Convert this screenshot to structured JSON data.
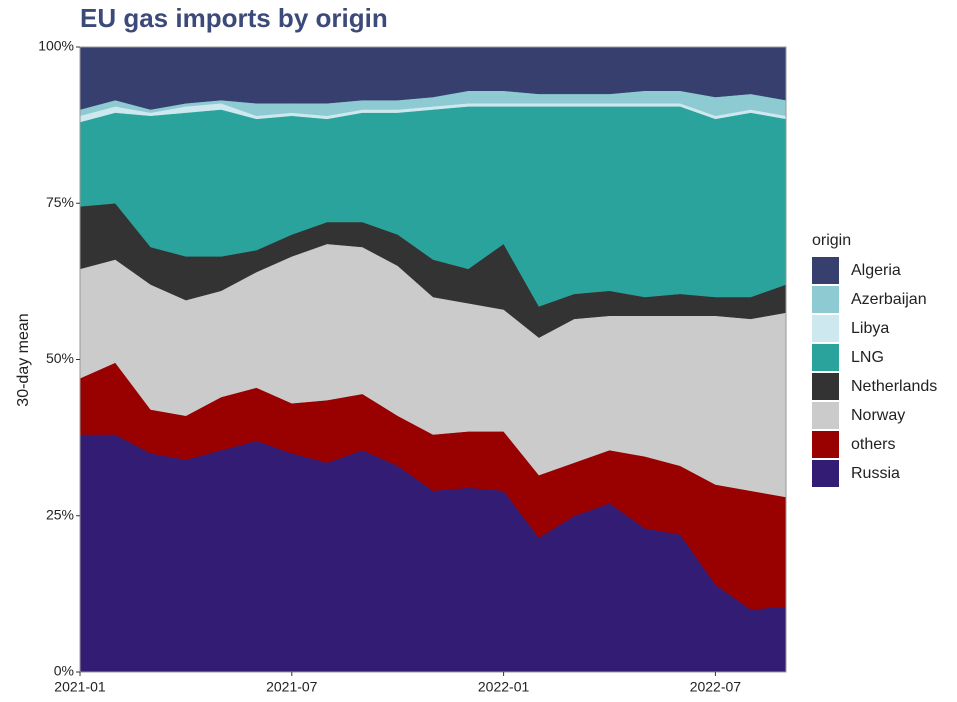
{
  "chart_data": {
    "type": "stacked_area",
    "title": "EU gas imports by origin",
    "y_label": "30-day mean",
    "legend_title": "origin",
    "legend": "right",
    "x": [
      "2021-01",
      "2021-02",
      "2021-03",
      "2021-04",
      "2021-05",
      "2021-06",
      "2021-07",
      "2021-08",
      "2021-09",
      "2021-10",
      "2021-11",
      "2021-12",
      "2022-01",
      "2022-02",
      "2022-03",
      "2022-04",
      "2022-05",
      "2022-06",
      "2022-07",
      "2022-08",
      "2022-09"
    ],
    "xlim": [
      "2021-01",
      "2022-09"
    ],
    "xticks": [
      "2021-01",
      "2021-07",
      "2022-01",
      "2022-07"
    ],
    "ylim": [
      0,
      100
    ],
    "yticks": [
      {
        "value": 0,
        "label": "0%"
      },
      {
        "value": 25,
        "label": "25%"
      },
      {
        "value": 50,
        "label": "50%"
      },
      {
        "value": 75,
        "label": "75%"
      },
      {
        "value": 100,
        "label": "100%"
      }
    ],
    "series": [
      {
        "name": "Algeria",
        "color": "#363f6e",
        "values": [
          10,
          8.5,
          10,
          9,
          8.5,
          9,
          9,
          9,
          8.5,
          8.5,
          8,
          7,
          7,
          7.5,
          7.5,
          7.5,
          7,
          7,
          8,
          7.5,
          8.5
        ]
      },
      {
        "name": "Azerbaijan",
        "color": "#8ecad2",
        "values": [
          1,
          1,
          0.5,
          0.5,
          0.5,
          2,
          1.5,
          2,
          1.5,
          1.5,
          1.5,
          2,
          2,
          1.5,
          1.5,
          1.5,
          2,
          2,
          3,
          2.5,
          2.5
        ]
      },
      {
        "name": "Libya",
        "color": "#cde8ee",
        "values": [
          1,
          1,
          0.5,
          1,
          1,
          0.5,
          0.5,
          0.5,
          0.5,
          0.5,
          0.5,
          0.5,
          0.5,
          0.5,
          0.5,
          0.5,
          0.5,
          0.5,
          0.5,
          0.5,
          0.5
        ]
      },
      {
        "name": "LNG",
        "color": "#2aa39c",
        "values": [
          13.5,
          14.5,
          21,
          23,
          23.5,
          21,
          19,
          16.5,
          17.5,
          19.5,
          24,
          26,
          22,
          32,
          30,
          29.5,
          30.5,
          30,
          28.5,
          29.5,
          26.5
        ]
      },
      {
        "name": "Netherlands",
        "color": "#333333",
        "values": [
          10,
          9,
          6,
          7,
          5.5,
          3.5,
          3.5,
          3.5,
          4,
          5,
          6,
          5.5,
          10.5,
          5,
          4,
          4,
          3,
          3.5,
          3,
          3.5,
          4.5
        ]
      },
      {
        "name": "Norway",
        "color": "#cbcbcb",
        "values": [
          17.5,
          16.5,
          20,
          18.5,
          17,
          18.5,
          23.5,
          25,
          23.5,
          24,
          22,
          20.5,
          19.5,
          22,
          23,
          21.5,
          22.5,
          24,
          27,
          27.5,
          29.5
        ]
      },
      {
        "name": "others",
        "color": "#990000",
        "values": [
          9,
          11.5,
          7,
          7,
          8.5,
          8.5,
          8,
          10,
          9,
          8,
          9,
          9,
          9.5,
          10,
          8.5,
          8.5,
          11.5,
          11,
          16,
          19,
          17.5
        ]
      },
      {
        "name": "Russia",
        "color": "#331c74",
        "values": [
          38,
          38,
          35,
          34,
          35.5,
          37,
          35,
          33.5,
          35.5,
          33,
          29,
          29.5,
          29,
          21.5,
          25,
          27,
          23,
          22,
          14,
          10,
          10.5
        ]
      }
    ]
  }
}
